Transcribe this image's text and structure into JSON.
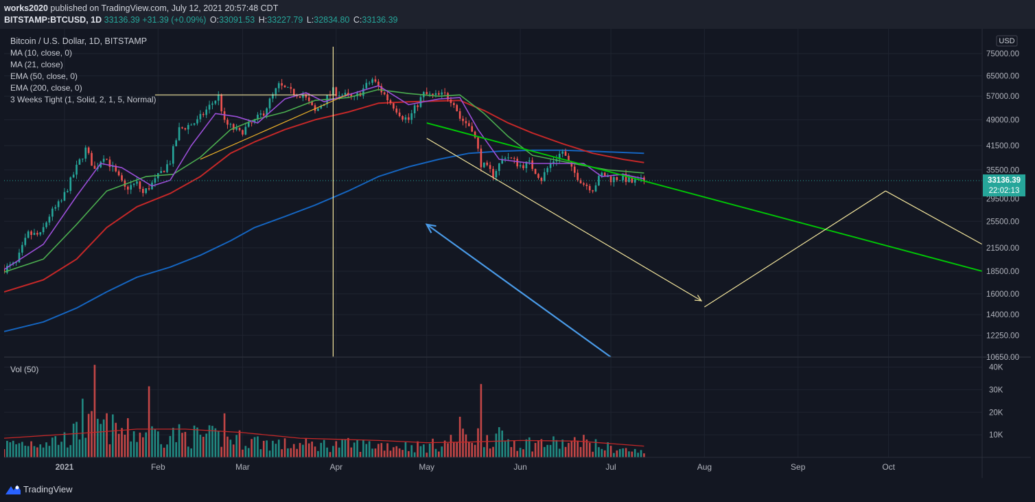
{
  "header": {
    "publisher": "works2020",
    "published_text": "published on TradingView.com, July 12, 2021 20:57:48 CDT",
    "symbol": "BITSTAMP:BTCUSD, 1D",
    "last": "33136.39",
    "change": "+31.39 (+0.09%)",
    "open_label": "O:",
    "open": "33091.53",
    "high_label": "H:",
    "high": "33227.79",
    "low_label": "L:",
    "low": "32834.80",
    "close_label": "C:",
    "close": "33136.39"
  },
  "legend": [
    "Bitcoin / U.S. Dollar, 1D, BITSTAMP",
    "MA (10, close, 0)",
    "MA (21, close)",
    "EMA (50, close, 0)",
    "EMA (200, close, 0)",
    "3 Weeks Tight (1, Solid, 2, 1, 5, Normal)"
  ],
  "volume_label": "Vol (50)",
  "currency_badge": "USD",
  "last_price_badge": "33136.39",
  "countdown_badge": "22:02:13",
  "branding": "TradingView",
  "colors": {
    "background": "#131722",
    "candle_up": "#26a69a",
    "candle_down": "#ef5350",
    "ma10": "#9c4fd9",
    "ma21": "#4caf50",
    "ema50": "#c62828",
    "ema200": "#1565c0",
    "drawing_yellow": "#f5e79e",
    "drawing_green": "#00c805",
    "drawing_blue": "#4a9be8"
  },
  "chart_data": {
    "type": "candlestick",
    "x_start": "2020-12-12",
    "x_end": "2021-11-01",
    "x_ticks": [
      {
        "date": "2021-01-01",
        "label": "2021"
      },
      {
        "date": "2021-02-01",
        "label": "Feb"
      },
      {
        "date": "2021-03-01",
        "label": "Mar"
      },
      {
        "date": "2021-04-01",
        "label": "Apr"
      },
      {
        "date": "2021-05-01",
        "label": "May"
      },
      {
        "date": "2021-06-01",
        "label": "Jun"
      },
      {
        "date": "2021-07-01",
        "label": "Jul"
      },
      {
        "date": "2021-08-01",
        "label": "Aug"
      },
      {
        "date": "2021-09-01",
        "label": "Sep"
      },
      {
        "date": "2021-10-01",
        "label": "Oct"
      }
    ],
    "y_scale": "log",
    "ylim": [
      10650,
      75000
    ],
    "y_ticks": [
      {
        "value": 75000,
        "label": "75000.00"
      },
      {
        "value": 65000,
        "label": "65000.00"
      },
      {
        "value": 57000,
        "label": "57000.00"
      },
      {
        "value": 49000,
        "label": "49000.00"
      },
      {
        "value": 41500,
        "label": "41500.00"
      },
      {
        "value": 35500,
        "label": "35500.00"
      },
      {
        "value": 29500,
        "label": "29500.00"
      },
      {
        "value": 25500,
        "label": "25500.00"
      },
      {
        "value": 21500,
        "label": "21500.00"
      },
      {
        "value": 18500,
        "label": "18500.00"
      },
      {
        "value": 16000,
        "label": "16000.00"
      },
      {
        "value": 14000,
        "label": "14000.00"
      },
      {
        "value": 12250,
        "label": "12250.00"
      },
      {
        "value": 10650,
        "label": "10650.00"
      }
    ],
    "price_keypoints": [
      [
        "2020-12-12",
        18800
      ],
      [
        "2020-12-16",
        19400
      ],
      [
        "2020-12-20",
        23500
      ],
      [
        "2020-12-24",
        23300
      ],
      [
        "2020-12-27",
        26500
      ],
      [
        "2020-12-31",
        29000
      ],
      [
        "2021-01-03",
        33000
      ],
      [
        "2021-01-08",
        40500
      ],
      [
        "2021-01-11",
        35500
      ],
      [
        "2021-01-14",
        39000
      ],
      [
        "2021-01-21",
        31500
      ],
      [
        "2021-01-25",
        32500
      ],
      [
        "2021-01-27",
        30500
      ],
      [
        "2021-01-31",
        33100
      ],
      [
        "2021-02-05",
        37500
      ],
      [
        "2021-02-08",
        46000
      ],
      [
        "2021-02-14",
        48500
      ],
      [
        "2021-02-21",
        57000
      ],
      [
        "2021-02-23",
        48000
      ],
      [
        "2021-02-28",
        45000
      ],
      [
        "2021-03-05",
        48500
      ],
      [
        "2021-03-08",
        51500
      ],
      [
        "2021-03-13",
        61000
      ],
      [
        "2021-03-17",
        58500
      ],
      [
        "2021-03-21",
        57500
      ],
      [
        "2021-03-25",
        51500
      ],
      [
        "2021-03-31",
        58900
      ],
      [
        "2021-04-07",
        56000
      ],
      [
        "2021-04-13",
        63500
      ],
      [
        "2021-04-18",
        56000
      ],
      [
        "2021-04-23",
        50000
      ],
      [
        "2021-04-25",
        49000
      ],
      [
        "2021-04-30",
        57800
      ],
      [
        "2021-05-03",
        57000
      ],
      [
        "2021-05-07",
        57500
      ],
      [
        "2021-05-10",
        55000
      ],
      [
        "2021-05-12",
        49500
      ],
      [
        "2021-05-16",
        46500
      ],
      [
        "2021-05-19",
        37000
      ],
      [
        "2021-05-23",
        34500
      ],
      [
        "2021-05-27",
        39000
      ],
      [
        "2021-06-01",
        36500
      ],
      [
        "2021-06-04",
        37000
      ],
      [
        "2021-06-08",
        33500
      ],
      [
        "2021-06-11",
        37000
      ],
      [
        "2021-06-15",
        40000
      ],
      [
        "2021-06-18",
        35500
      ],
      [
        "2021-06-22",
        32500
      ],
      [
        "2021-06-25",
        31500
      ],
      [
        "2021-06-28",
        34500
      ],
      [
        "2021-07-01",
        33500
      ],
      [
        "2021-07-05",
        33800
      ],
      [
        "2021-07-08",
        32800
      ],
      [
        "2021-07-12",
        33136.39
      ]
    ],
    "ma10": [
      [
        "2020-12-12",
        18700
      ],
      [
        "2020-12-25",
        22000
      ],
      [
        "2021-01-05",
        30000
      ],
      [
        "2021-01-13",
        37000
      ],
      [
        "2021-01-20",
        36000
      ],
      [
        "2021-01-30",
        32000
      ],
      [
        "2021-02-05",
        33200
      ],
      [
        "2021-02-12",
        41500
      ],
      [
        "2021-02-20",
        51000
      ],
      [
        "2021-02-27",
        50000
      ],
      [
        "2021-03-06",
        48000
      ],
      [
        "2021-03-15",
        56000
      ],
      [
        "2021-03-22",
        58300
      ],
      [
        "2021-03-28",
        55000
      ],
      [
        "2021-04-05",
        57500
      ],
      [
        "2021-04-15",
        61000
      ],
      [
        "2021-04-25",
        54000
      ],
      [
        "2021-05-05",
        56000
      ],
      [
        "2021-05-12",
        56500
      ],
      [
        "2021-05-18",
        46000
      ],
      [
        "2021-05-25",
        38000
      ],
      [
        "2021-06-05",
        37000
      ],
      [
        "2021-06-15",
        37000
      ],
      [
        "2021-06-22",
        37000
      ],
      [
        "2021-06-28",
        34000
      ],
      [
        "2021-07-05",
        34500
      ],
      [
        "2021-07-12",
        33500
      ]
    ],
    "ma21": [
      [
        "2020-12-12",
        18400
      ],
      [
        "2020-12-25",
        20000
      ],
      [
        "2021-01-05",
        25000
      ],
      [
        "2021-01-15",
        31000
      ],
      [
        "2021-01-28",
        34000
      ],
      [
        "2021-02-06",
        34500
      ],
      [
        "2021-02-15",
        38500
      ],
      [
        "2021-02-25",
        46000
      ],
      [
        "2021-03-05",
        49000
      ],
      [
        "2021-03-15",
        51500
      ],
      [
        "2021-03-25",
        55500
      ],
      [
        "2021-04-05",
        56500
      ],
      [
        "2021-04-15",
        59500
      ],
      [
        "2021-04-25",
        58000
      ],
      [
        "2021-05-05",
        57000
      ],
      [
        "2021-05-12",
        57500
      ],
      [
        "2021-05-20",
        51000
      ],
      [
        "2021-05-28",
        44000
      ],
      [
        "2021-06-05",
        39000
      ],
      [
        "2021-06-15",
        37500
      ],
      [
        "2021-06-22",
        36500
      ],
      [
        "2021-06-30",
        35500
      ],
      [
        "2021-07-12",
        34800
      ]
    ],
    "ema50": [
      [
        "2020-12-12",
        16200
      ],
      [
        "2020-12-25",
        17500
      ],
      [
        "2021-01-05",
        20000
      ],
      [
        "2021-01-15",
        24500
      ],
      [
        "2021-01-25",
        28000
      ],
      [
        "2021-02-05",
        30500
      ],
      [
        "2021-02-15",
        34000
      ],
      [
        "2021-02-25",
        39500
      ],
      [
        "2021-03-05",
        42500
      ],
      [
        "2021-03-15",
        46000
      ],
      [
        "2021-03-25",
        49000
      ],
      [
        "2021-04-05",
        51500
      ],
      [
        "2021-04-15",
        54500
      ],
      [
        "2021-04-25",
        55000
      ],
      [
        "2021-05-05",
        55300
      ],
      [
        "2021-05-12",
        55500
      ],
      [
        "2021-05-20",
        52000
      ],
      [
        "2021-05-28",
        48000
      ],
      [
        "2021-06-05",
        45000
      ],
      [
        "2021-06-15",
        42000
      ],
      [
        "2021-06-25",
        39500
      ],
      [
        "2021-07-05",
        38000
      ],
      [
        "2021-07-12",
        37200
      ]
    ],
    "ema200": [
      [
        "2020-12-12",
        12550
      ],
      [
        "2020-12-25",
        13350
      ],
      [
        "2021-01-05",
        14600
      ],
      [
        "2021-01-15",
        16200
      ],
      [
        "2021-01-25",
        17800
      ],
      [
        "2021-02-05",
        19000
      ],
      [
        "2021-02-15",
        20500
      ],
      [
        "2021-02-25",
        22500
      ],
      [
        "2021-03-05",
        24500
      ],
      [
        "2021-03-15",
        26300
      ],
      [
        "2021-03-25",
        28300
      ],
      [
        "2021-04-05",
        31000
      ],
      [
        "2021-04-15",
        34000
      ],
      [
        "2021-04-25",
        36200
      ],
      [
        "2021-05-05",
        38000
      ],
      [
        "2021-05-15",
        39500
      ],
      [
        "2021-05-25",
        40000
      ],
      [
        "2021-06-05",
        40300
      ],
      [
        "2021-06-15",
        40300
      ],
      [
        "2021-06-25",
        40000
      ],
      [
        "2021-07-05",
        39700
      ],
      [
        "2021-07-12",
        39500
      ]
    ],
    "drawings": [
      {
        "kind": "hline",
        "color": "yellow",
        "from": [
          "2021-01-31",
          57500
        ],
        "to": [
          "2021-04-01",
          57500
        ]
      },
      {
        "kind": "vline",
        "color": "yellow",
        "date": "2021-03-31"
      },
      {
        "kind": "line",
        "color": "orange",
        "from": [
          "2021-02-15",
          38000
        ],
        "to": [
          "2021-04-05",
          57800
        ]
      },
      {
        "kind": "line",
        "color": "green",
        "from": [
          "2021-05-01",
          48000
        ],
        "to": [
          "2021-11-01",
          18500
        ]
      },
      {
        "kind": "arrow",
        "color": "yellow",
        "from": [
          "2021-05-01",
          43500
        ],
        "to": [
          "2021-07-31",
          15300
        ]
      },
      {
        "kind": "line",
        "color": "yellow",
        "from": [
          "2021-08-01",
          14700
        ],
        "to": [
          "2021-09-30",
          31000
        ]
      },
      {
        "kind": "line",
        "color": "yellow",
        "from": [
          "2021-09-30",
          31000
        ],
        "to": [
          "2021-11-01",
          22000
        ]
      },
      {
        "kind": "arrow",
        "color": "blue",
        "from": [
          "2021-07-01",
          10650
        ],
        "to": [
          "2021-05-01",
          25000
        ]
      }
    ],
    "volume": {
      "y_ticks": [
        {
          "value": 10000,
          "label": "10K"
        },
        {
          "value": 20000,
          "label": "20K"
        },
        {
          "value": 30000,
          "label": "30K"
        },
        {
          "value": 40000,
          "label": "40K"
        }
      ],
      "ylim": [
        0,
        42000
      ],
      "keypoints": [
        [
          "2020-12-12",
          6500
        ],
        [
          "2021-01-01",
          9500
        ],
        [
          "2021-01-11",
          17000
        ],
        [
          "2021-01-21",
          13000
        ],
        [
          "2021-02-08",
          11500
        ],
        [
          "2021-02-25",
          10000
        ],
        [
          "2021-03-15",
          6500
        ],
        [
          "2021-04-15",
          6500
        ],
        [
          "2021-05-01",
          5500
        ],
        [
          "2021-05-19",
          12000
        ],
        [
          "2021-06-01",
          7500
        ],
        [
          "2021-06-22",
          7000
        ],
        [
          "2021-07-12",
          2500
        ]
      ],
      "spikes": [
        [
          "2021-01-11",
          41000
        ],
        [
          "2021-01-07",
          26000
        ],
        [
          "2021-01-29",
          31500
        ],
        [
          "2021-02-23",
          19500
        ],
        [
          "2021-05-19",
          32500
        ],
        [
          "2021-05-12",
          18000
        ],
        [
          "2021-06-22",
          10000
        ]
      ],
      "ma50": [
        [
          "2020-12-12",
          8500
        ],
        [
          "2021-01-10",
          11000
        ],
        [
          "2021-01-25",
          12500
        ],
        [
          "2021-02-10",
          12500
        ],
        [
          "2021-03-01",
          11000
        ],
        [
          "2021-03-20",
          8500
        ],
        [
          "2021-04-15",
          7500
        ],
        [
          "2021-05-01",
          6500
        ],
        [
          "2021-05-15",
          6800
        ],
        [
          "2021-06-01",
          7500
        ],
        [
          "2021-06-20",
          7200
        ],
        [
          "2021-07-12",
          5000
        ]
      ]
    }
  }
}
